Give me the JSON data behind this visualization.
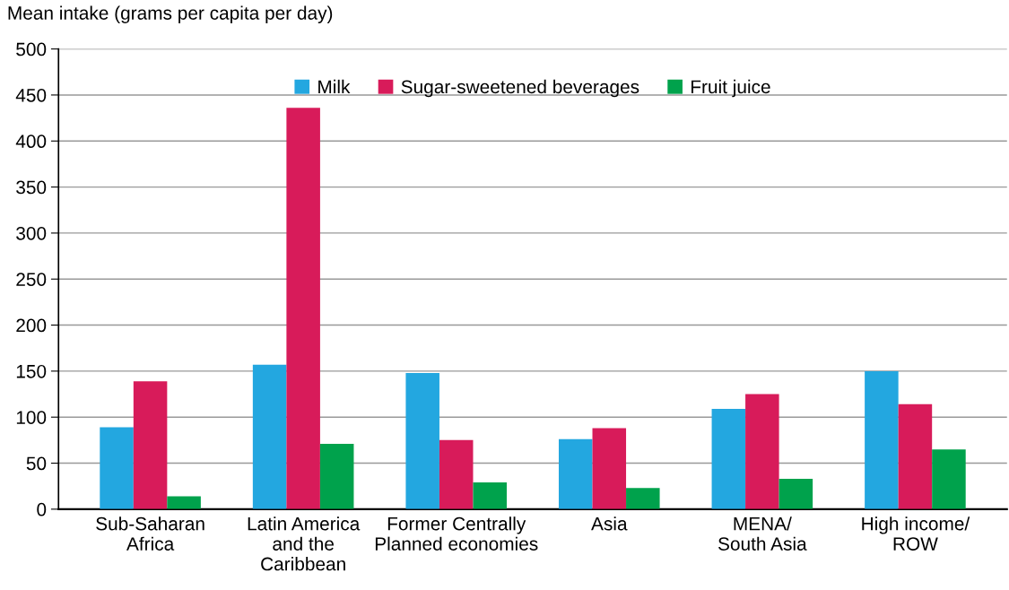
{
  "chart_data": {
    "type": "bar",
    "ylabel": "Mean intake (grams per capita per day)",
    "categories": [
      "Sub-Saharan\nAfrica",
      "Latin America\nand the\nCaribbean",
      "Former Centrally\nPlanned economies",
      "Asia",
      "MENA/\nSouth Asia",
      "High income/\nROW"
    ],
    "series": [
      {
        "name": "Milk",
        "color": "#23a7e0",
        "values": [
          89,
          157,
          148,
          76,
          109,
          150
        ]
      },
      {
        "name": "Sugar-sweetened beverages",
        "color": "#d81b5a",
        "values": [
          139,
          436,
          75,
          88,
          125,
          114
        ]
      },
      {
        "name": "Fruit juice",
        "color": "#00a24c",
        "values": [
          14,
          71,
          29,
          23,
          33,
          65
        ]
      }
    ],
    "ylim": [
      0,
      500
    ],
    "yticks": [
      0,
      50,
      100,
      150,
      200,
      250,
      300,
      350,
      400,
      450,
      500
    ],
    "grid": "y",
    "legend": "top"
  }
}
